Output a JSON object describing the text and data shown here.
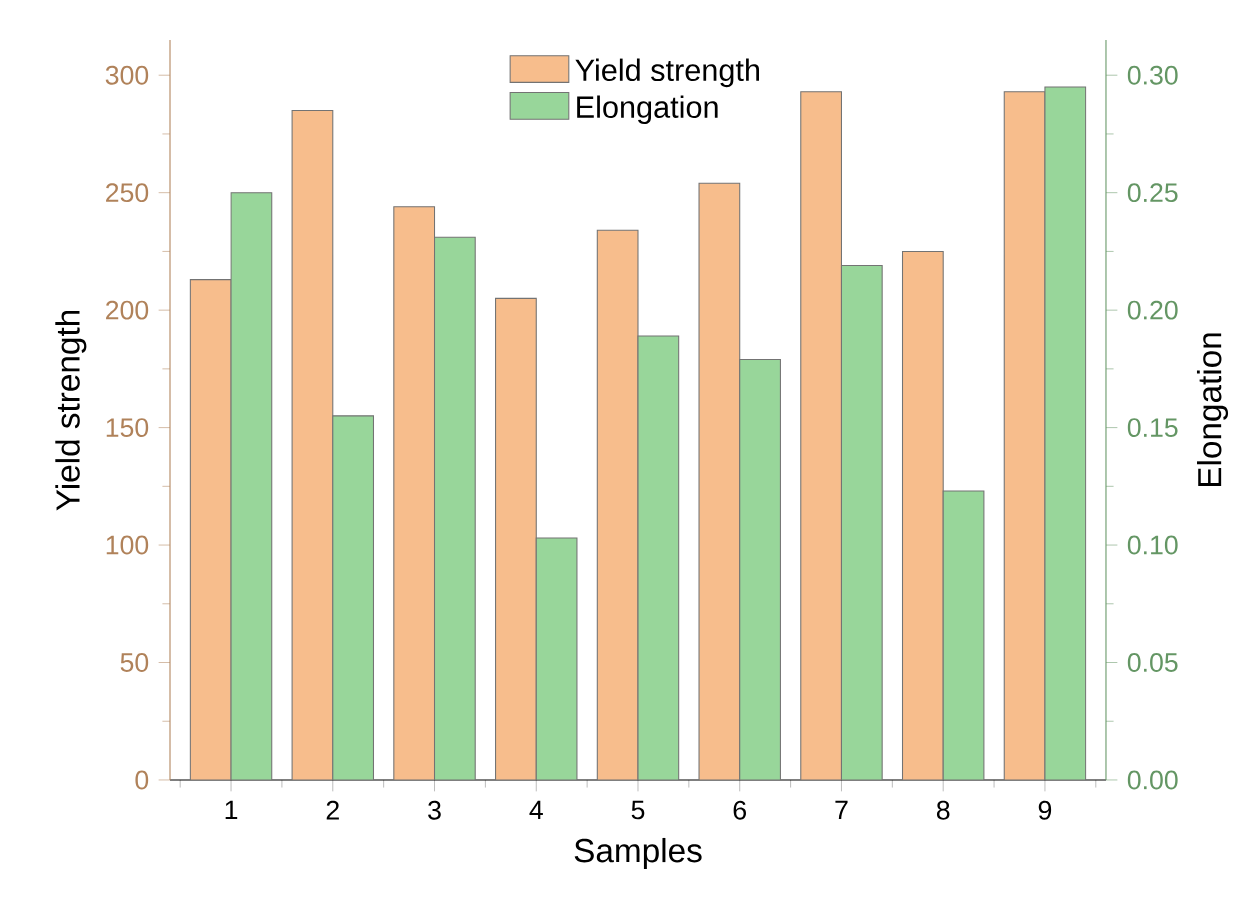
{
  "chart_data": {
    "type": "bar",
    "xlabel": "Samples",
    "ylabel": "Yield strength",
    "y2label": "Elongation",
    "categories": [
      "1",
      "2",
      "3",
      "4",
      "5",
      "6",
      "7",
      "8",
      "9"
    ],
    "series": [
      {
        "name": "Yield strength",
        "color": "#f7bd8c",
        "values": [
          213,
          285,
          244,
          205,
          234,
          254,
          293,
          225,
          293
        ]
      },
      {
        "name": "Elongation",
        "color": "#98d69a",
        "axis": "y2",
        "values": [
          0.25,
          0.155,
          0.231,
          0.103,
          0.189,
          0.179,
          0.219,
          0.123,
          0.295
        ]
      }
    ],
    "ylim": [
      0,
      315
    ],
    "yticks": [
      0,
      50,
      100,
      150,
      200,
      250,
      300
    ],
    "y2lim": [
      0,
      0.315
    ],
    "y2ticks": [
      {
        "value": 0,
        "label": "0.00"
      },
      {
        "value": 0.05,
        "label": "0.05"
      },
      {
        "value": 0.1,
        "label": "0.10"
      },
      {
        "value": 0.15,
        "label": "0.15"
      },
      {
        "value": 0.2,
        "label": "0.20"
      },
      {
        "value": 0.25,
        "label": "0.25"
      },
      {
        "value": 0.3,
        "label": "0.30"
      }
    ],
    "legend": "top",
    "grid": false
  }
}
